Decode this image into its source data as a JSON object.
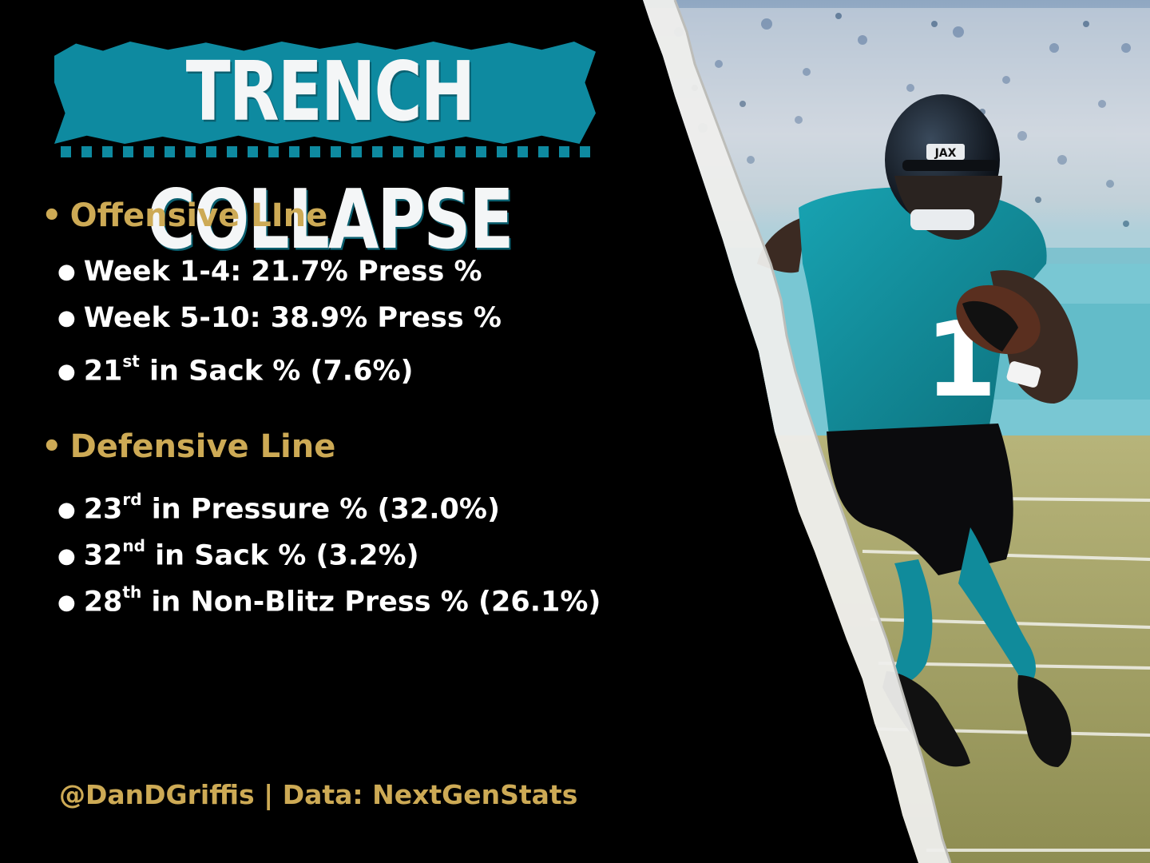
{
  "title": "TRENCH COLLAPSE",
  "colors": {
    "background": "#000000",
    "title_fill": "#0e8aa0",
    "heading_gold": "#cdaa55",
    "text_white": "#ffffff",
    "jersey_teal": "#0f8c9a"
  },
  "offense": {
    "heading": "Offensive LIne",
    "items": [
      {
        "text": "Week 1-4: 21.7% Press %"
      },
      {
        "text": "Week 5-10: 38.9% Press %"
      },
      {
        "pre": "21",
        "sup": "st",
        "post": " in Sack % (7.6%)"
      }
    ]
  },
  "defense": {
    "heading": "Defensive Line",
    "items": [
      {
        "pre": "23",
        "sup": "rd",
        "post": " in Pressure % (32.0%)"
      },
      {
        "pre": "32",
        "sup": "nd",
        "post": " in Sack % (3.2%)"
      },
      {
        "pre": "28",
        "sup": "th",
        "post": " in Non-Blitz Press % (26.1%)"
      }
    ]
  },
  "credit": "@DanDGriffis | Data: NextGenStats",
  "photo": {
    "helmet_text": "JAX",
    "jersey_number": "1",
    "subject": "football-player-running-icon"
  }
}
